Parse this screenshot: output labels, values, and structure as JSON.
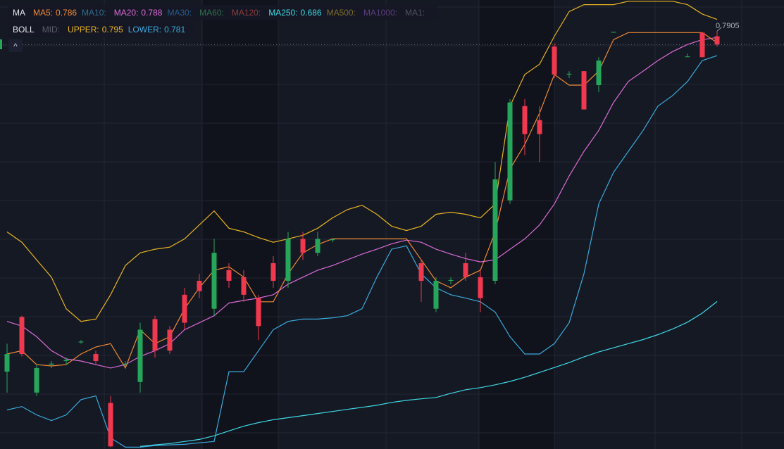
{
  "chart_data": {
    "type": "candlestick",
    "ylim": [
      0.629,
      0.8025
    ],
    "up_color": "#26a65b",
    "down_color": "#f0384f",
    "candles": {
      "open": [
        0.6589,
        0.68,
        0.6508,
        0.6616,
        0.663,
        0.6702,
        0.6657,
        0.6468,
        0.6616,
        0.6549,
        0.6792,
        0.6751,
        0.6886,
        0.694,
        0.6832,
        0.6981,
        0.6954,
        0.6873,
        0.7008,
        0.694,
        0.7102,
        0.7048,
        0.7097,
        null,
        null,
        null,
        null,
        null,
        0.7008,
        0.6832,
        0.694,
        0.7008,
        0.6954,
        0.694,
        0.7251,
        0.7615,
        0.7561,
        0.7845,
        0.7737,
        0.775,
        0.7696,
        0.7899,
        null,
        null,
        null,
        null,
        0.7804,
        0.7899,
        0.7885
      ],
      "high": [
        0.6697,
        0.6805,
        0.6616,
        0.663,
        0.6643,
        0.6711,
        0.667,
        0.6495,
        0.663,
        0.6778,
        0.6805,
        0.6765,
        0.6913,
        0.6967,
        0.7102,
        0.7008,
        0.6981,
        0.6886,
        0.7035,
        0.7129,
        0.7129,
        0.7129,
        0.7102,
        null,
        null,
        null,
        null,
        null,
        0.7021,
        0.6954,
        0.6954,
        0.7048,
        0.6981,
        0.7399,
        0.7642,
        0.7642,
        0.7615,
        0.7858,
        0.775,
        0.775,
        0.7804,
        0.7902,
        null,
        null,
        null,
        null,
        0.7818,
        0.7899,
        0.7905
      ],
      "low": [
        0.6508,
        0.6648,
        0.6495,
        0.6603,
        0.6616,
        0.6697,
        0.6616,
        0.6297,
        0.6603,
        0.6508,
        0.6643,
        0.6657,
        0.6751,
        0.6873,
        0.6805,
        0.6913,
        0.6859,
        0.6711,
        0.6913,
        0.6913,
        0.7021,
        0.7035,
        0.7089,
        null,
        null,
        null,
        null,
        null,
        0.6859,
        0.6819,
        0.6927,
        0.694,
        0.6819,
        0.6927,
        0.7237,
        0.7426,
        0.7399,
        0.7723,
        0.7723,
        0.7602,
        0.7669,
        0.7899,
        null,
        null,
        null,
        null,
        0.7804,
        0.7804,
        0.7845
      ],
      "close": [
        0.6657,
        0.6657,
        0.6603,
        0.662,
        0.6634,
        0.6705,
        0.663,
        0.63,
        0.662,
        0.6751,
        0.667,
        0.667,
        0.6778,
        0.69,
        0.7048,
        0.694,
        0.6886,
        0.6765,
        0.694,
        0.7102,
        0.7048,
        0.7102,
        0.71,
        null,
        null,
        null,
        null,
        null,
        0.694,
        0.694,
        0.6943,
        0.6954,
        0.6873,
        0.7332,
        0.7629,
        0.7507,
        0.7507,
        0.7737,
        0.774,
        0.7602,
        0.7791,
        0.7902,
        null,
        null,
        null,
        null,
        0.7807,
        0.7804,
        0.7853
      ]
    },
    "series": [
      {
        "color": "#e8b321",
        "values": [
          0.7129,
          0.7089,
          0.7021,
          0.6954,
          0.6832,
          0.6783,
          0.6792,
          0.6886,
          0.6999,
          0.7048,
          0.7062,
          0.707,
          0.7102,
          0.7156,
          0.721,
          0.7143,
          0.7129,
          0.7107,
          0.7089,
          0.7102,
          0.7116,
          0.7143,
          0.7183,
          0.7215,
          0.7232,
          0.7197,
          0.7151,
          0.7134,
          0.7151,
          0.7197,
          0.7205,
          0.7197,
          0.7183,
          0.7237,
          0.7615,
          0.7737,
          0.7777,
          0.7885,
          0.798,
          0.8007,
          0.8007,
          0.8007,
          0.802,
          0.802,
          0.802,
          0.802,
          0.8007,
          0.7971,
          0.795
        ]
      },
      {
        "color": "#3ba9dc",
        "values": [
          0.6441,
          0.6454,
          0.6422,
          0.64,
          0.6422,
          0.6481,
          0.6495,
          0.6333,
          0.6297,
          0.6297,
          0.6303,
          0.6306,
          0.6308,
          0.6314,
          0.6319,
          0.6589,
          0.6589,
          0.667,
          0.6751,
          0.6783,
          0.6792,
          0.6792,
          0.6797,
          0.6805,
          0.6832,
          0.6954,
          0.7062,
          0.7075,
          0.6967,
          0.6913,
          0.6886,
          0.6873,
          0.6859,
          0.6819,
          0.6724,
          0.6657,
          0.6657,
          0.6697,
          0.6778,
          0.6967,
          0.7237,
          0.7359,
          0.744,
          0.7521,
          0.7615,
          0.7656,
          0.771,
          0.7791,
          0.781
        ]
      },
      {
        "color": "#db6ad6",
        "values": [
          0.6783,
          0.6765,
          0.6724,
          0.667,
          0.6638,
          0.663,
          0.6616,
          0.6603,
          0.6616,
          0.6648,
          0.667,
          0.6697,
          0.6751,
          0.6778,
          0.6805,
          0.6854,
          0.6864,
          0.6873,
          0.6886,
          0.6927,
          0.6954,
          0.6981,
          0.6999,
          0.7021,
          0.7043,
          0.7062,
          0.7083,
          0.7097,
          0.7089,
          0.7062,
          0.7043,
          0.7026,
          0.7013,
          0.7021,
          0.7062,
          0.7102,
          0.7156,
          0.7237,
          0.7345,
          0.744,
          0.7521,
          0.7629,
          0.771,
          0.775,
          0.7791,
          0.7826,
          0.7853,
          0.7872,
          0.788
        ]
      },
      {
        "color": "#f08a34",
        "values": [
          0.6657,
          0.667,
          0.6616,
          0.6611,
          0.6616,
          0.6657,
          0.6684,
          0.6697,
          0.6603,
          0.6751,
          0.6697,
          0.6724,
          0.6832,
          0.6913,
          0.6981,
          0.6994,
          0.6954,
          0.6859,
          0.6859,
          0.6967,
          0.7048,
          0.708,
          0.7102,
          0.7102,
          0.7102,
          0.7102,
          0.7102,
          0.7102,
          0.7021,
          0.694,
          0.6913,
          0.6954,
          0.6981,
          0.7129,
          0.7372,
          0.7467,
          0.7588,
          0.7737,
          0.7696,
          0.7696,
          0.775,
          0.7872,
          0.7899,
          0.7899,
          0.7899,
          0.7899,
          0.7899,
          0.7899,
          0.786
        ]
      },
      {
        "color": "#3fd8e6",
        "values": [
          null,
          null,
          null,
          null,
          null,
          null,
          null,
          null,
          null,
          0.63,
          0.6306,
          0.6311,
          0.6319,
          0.6327,
          0.6341,
          0.636,
          0.6378,
          0.6392,
          0.6403,
          0.6411,
          0.6419,
          0.6427,
          0.6435,
          0.6443,
          0.6451,
          0.6459,
          0.647,
          0.6478,
          0.6484,
          0.6489,
          0.6505,
          0.6519,
          0.6527,
          0.6538,
          0.6551,
          0.6567,
          0.6586,
          0.6605,
          0.6624,
          0.6646,
          0.6665,
          0.6681,
          0.6697,
          0.6713,
          0.6732,
          0.6754,
          0.678,
          0.6815,
          0.686
        ]
      }
    ],
    "high_annotation": 0.7905,
    "legends": [
      {
        "title": "MA",
        "items": [
          {
            "name": "MA5:",
            "value": 0.786,
            "color": "#f08a34"
          },
          {
            "name": "MA10:",
            "color": "#2f6d8f"
          },
          {
            "name": "MA20:",
            "value": 0.788,
            "color": "#db6ad6"
          },
          {
            "name": "MA30:",
            "color": "#2b5a8c"
          },
          {
            "name": "MA60:",
            "color": "#2f6e4c"
          },
          {
            "name": "MA120:",
            "color": "#8c3b3b"
          },
          {
            "name": "MA250:",
            "value": 0.686,
            "color": "#3fd8e6"
          },
          {
            "name": "MA500:",
            "color": "#7c6b2c"
          },
          {
            "name": "MA1000:",
            "color": "#5c3c7c"
          },
          {
            "name": "MA1:",
            "color": "#4e5260"
          }
        ]
      },
      {
        "title": "BOLL",
        "items": [
          {
            "name": "MID:",
            "color": "#5a5e6a"
          },
          {
            "name": "UPPER:",
            "value": 0.795,
            "color": "#e8b321"
          },
          {
            "name": "LOWER:",
            "value": 0.781,
            "color": "#3ba9dc"
          }
        ]
      }
    ]
  }
}
